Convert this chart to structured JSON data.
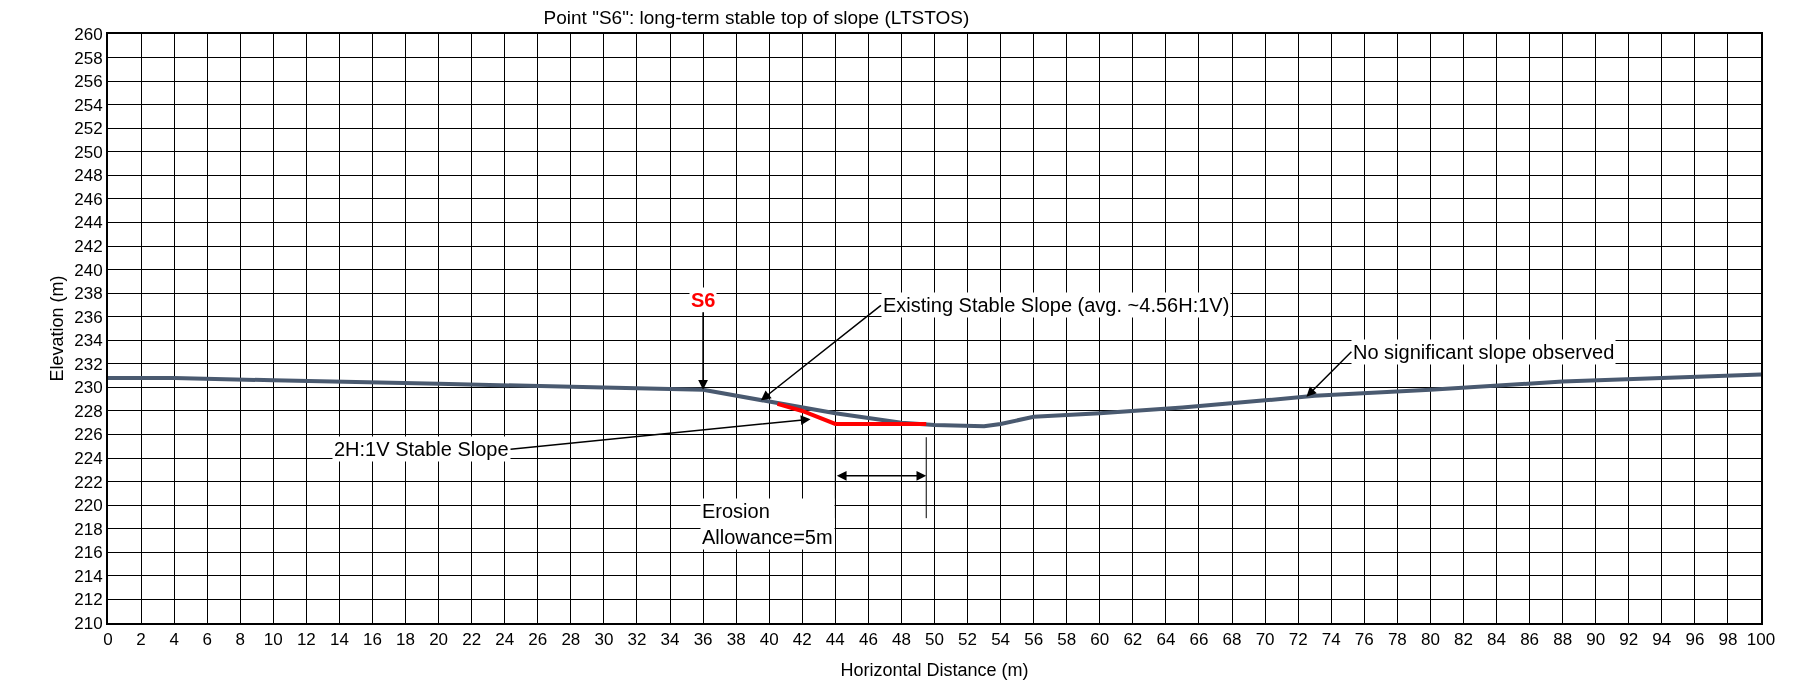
{
  "chart_data": {
    "type": "line",
    "title": "Point \"S6\": long-term stable top of slope (LTSTOS)",
    "xlabel": "Horizontal Distance (m)",
    "ylabel": "Elevation (m)",
    "series": [
      {
        "color": "#4a5a70",
        "x": [
          0,
          4,
          10,
          20,
          30,
          36,
          40,
          44,
          48,
          50,
          53,
          54,
          56,
          60,
          65,
          70,
          73,
          80,
          88,
          100
        ],
        "values": [
          230.8,
          230.8,
          230.6,
          230.3,
          230.0,
          229.8,
          228.8,
          227.8,
          227.0,
          226.8,
          226.7,
          226.9,
          227.5,
          227.8,
          228.3,
          228.9,
          229.3,
          229.8,
          230.5,
          231.1
        ]
      },
      {
        "color": "#ff0000",
        "x": [
          40.5,
          42,
          44,
          49.5
        ],
        "values": [
          228.6,
          228.0,
          226.9,
          226.9
        ]
      }
    ],
    "annotations": [
      {
        "text": "S6",
        "x": 36,
        "y": 229.8
      },
      {
        "text": "Existing Stable Slope (avg. ~4.56H:1V)",
        "x": 39.5,
        "y": 228.9
      },
      {
        "text": "2H:1V Stable Slope",
        "x": 42.5,
        "y": 227.3
      },
      {
        "text": "No significant slope observed",
        "x": 72.5,
        "y": 229.2
      },
      "Erosion\nAllowance=5m"
    ],
    "xlim": [
      0,
      100
    ],
    "ylim": [
      210,
      260
    ],
    "xticks": [
      0,
      2,
      4,
      6,
      8,
      10,
      12,
      14,
      16,
      18,
      20,
      22,
      24,
      26,
      28,
      30,
      32,
      34,
      36,
      38,
      40,
      42,
      44,
      46,
      48,
      50,
      52,
      54,
      56,
      58,
      60,
      62,
      64,
      66,
      68,
      70,
      72,
      74,
      76,
      78,
      80,
      82,
      84,
      86,
      88,
      90,
      92,
      94,
      96,
      98,
      100
    ],
    "yticks": [
      210,
      212,
      214,
      216,
      218,
      220,
      222,
      224,
      226,
      228,
      230,
      232,
      234,
      236,
      238,
      240,
      242,
      244,
      246,
      248,
      250,
      252,
      254,
      256,
      258,
      260
    ],
    "grid": true,
    "marker": "none",
    "line_style": "solid"
  }
}
